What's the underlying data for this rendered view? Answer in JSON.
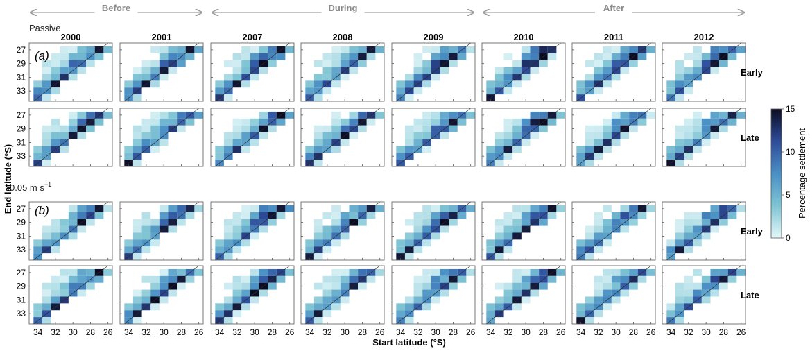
{
  "chart_data": {
    "type": "heatmap",
    "periods": [
      {
        "label": "Before",
        "span": [
          0,
          1
        ]
      },
      {
        "label": "During",
        "span": [
          2,
          4
        ]
      },
      {
        "label": "After",
        "span": [
          5,
          7
        ]
      }
    ],
    "years": [
      "2000",
      "2001",
      "2007",
      "2008",
      "2009",
      "2010",
      "2011",
      "2012"
    ],
    "panels": [
      {
        "mode_label": "Passive",
        "panel_label": "(a)",
        "seasons": [
          "Early",
          "Late"
        ]
      },
      {
        "mode_label": "0.05 m s",
        "mode_unit_exp": "−1",
        "panel_label": "(b)",
        "seasons": [
          "Early",
          "Late"
        ]
      }
    ],
    "xlabel": "Start latitude (°S)",
    "ylabel": "End latitude (°S)",
    "x_ticks": [
      "34",
      "32",
      "30",
      "28",
      "26"
    ],
    "y_ticks": [
      "27",
      "29",
      "31",
      "33"
    ],
    "xlim": [
      35,
      25.5
    ],
    "ylim": [
      26,
      34.5
    ],
    "grid": false,
    "colorbar": {
      "label": "Percentage settlement",
      "range": [
        0,
        15
      ],
      "ticks": [
        "0",
        "5",
        "10",
        "15"
      ]
    },
    "colors": {
      "low": "#e3f7f9",
      "mid_low": "#7fc4d4",
      "mid": "#4a8fc4",
      "mid_high": "#2e4c9a",
      "high": "#0b0c22",
      "axis": "#555555",
      "period_arrow": "#a0a0a0"
    }
  },
  "labels": {
    "mode_passive": "Passive",
    "mode_swim": "0.05 m s",
    "mode_swim_exp": "−1",
    "panel_a": "(a)",
    "panel_b": "(b)",
    "row_early": "Early",
    "row_late": "Late"
  }
}
